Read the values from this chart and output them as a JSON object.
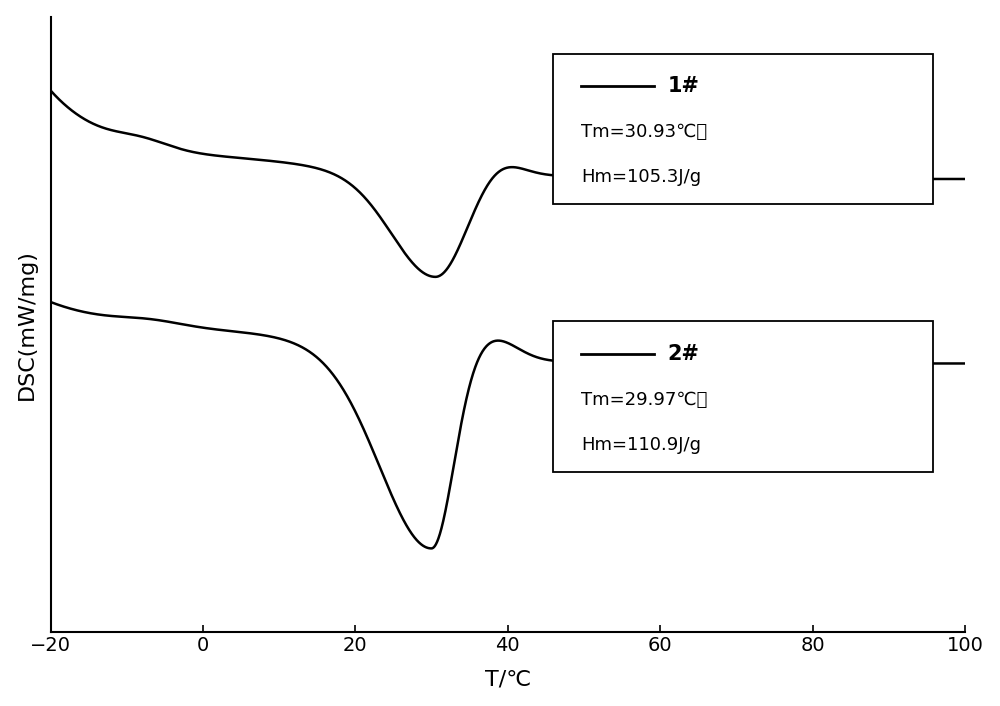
{
  "xlabel": "T/℃",
  "ylabel": "DSC(mW/mg)",
  "xlim": [
    -20,
    100
  ],
  "ylim": [
    -1.4,
    1.1
  ],
  "xticks": [
    -20,
    0,
    20,
    40,
    60,
    80,
    100
  ],
  "background_color": "#ffffff",
  "line_color": "#000000",
  "legend1_label": "1#",
  "legend1_tm": "Tm=30.93℃；",
  "legend1_hm": "Hm=105.3J/g",
  "legend2_label": "2#",
  "legend2_tm": "Tm=29.97℃；",
  "legend2_hm": "Hm=110.9J/g",
  "figsize": [
    10.0,
    7.06
  ],
  "dpi": 100
}
